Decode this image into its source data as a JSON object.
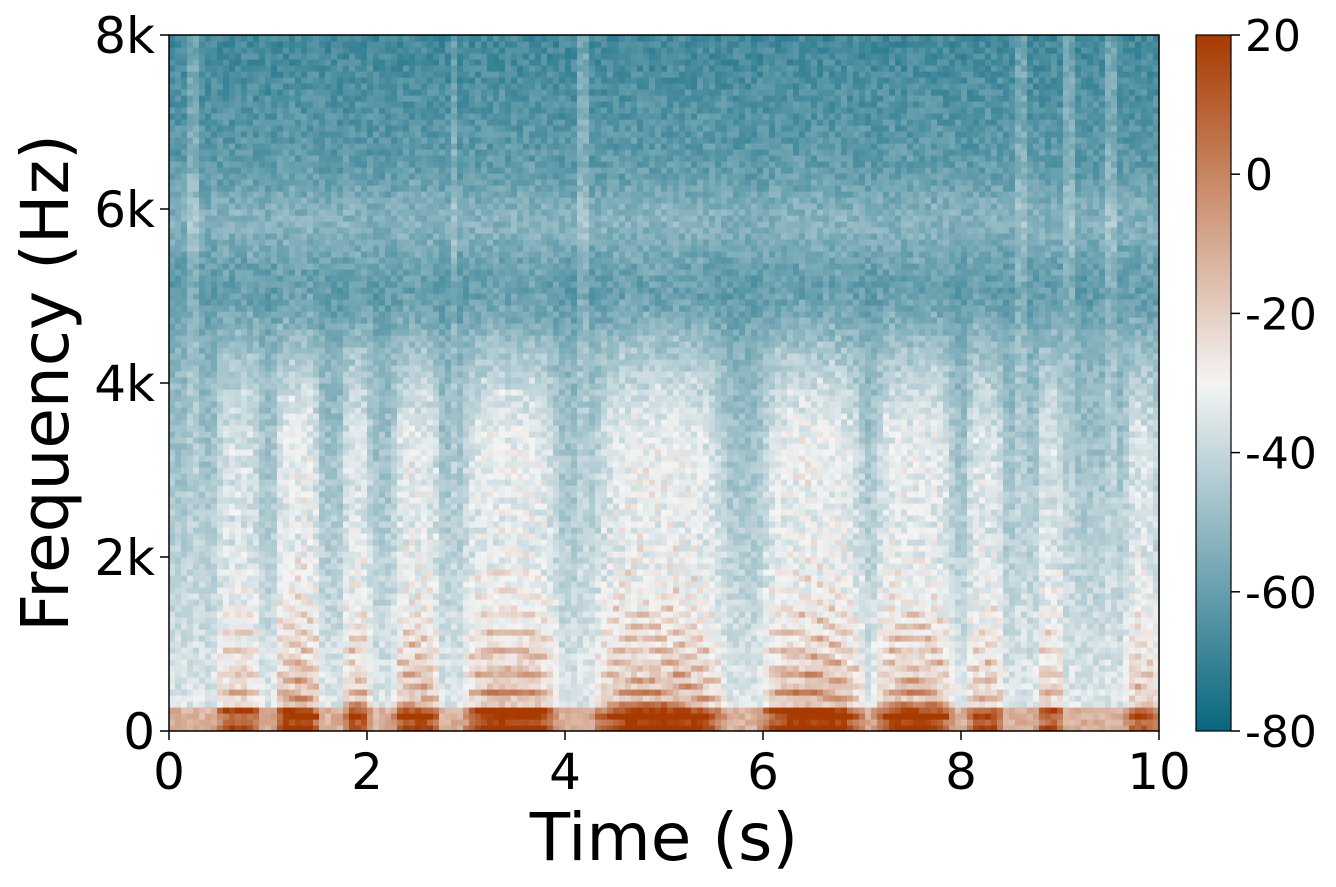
{
  "chart_data": {
    "type": "heatmap",
    "subtype": "spectrogram",
    "xlabel": "Time (s)",
    "ylabel": "Frequency (Hz)",
    "xlim": [
      0,
      10
    ],
    "ylim": [
      0,
      8000
    ],
    "x_ticks": [
      {
        "value": 0,
        "label": "0"
      },
      {
        "value": 2,
        "label": "2"
      },
      {
        "value": 4,
        "label": "4"
      },
      {
        "value": 6,
        "label": "6"
      },
      {
        "value": 8,
        "label": "8"
      },
      {
        "value": 10,
        "label": "10"
      }
    ],
    "y_ticks": [
      {
        "value": 0,
        "label": "0"
      },
      {
        "value": 2000,
        "label": "2k"
      },
      {
        "value": 4000,
        "label": "4k"
      },
      {
        "value": 6000,
        "label": "6k"
      },
      {
        "value": 8000,
        "label": "8k"
      }
    ],
    "colorbar": {
      "range": [
        -80,
        20
      ],
      "ticks": [
        {
          "value": 20,
          "label": "20"
        },
        {
          "value": 0,
          "label": "0"
        },
        {
          "value": -20,
          "label": "-20"
        },
        {
          "value": -40,
          "label": "-40"
        },
        {
          "value": -60,
          "label": "-60"
        },
        {
          "value": -80,
          "label": "-80"
        }
      ],
      "colors": [
        "#08667e",
        "#f4f4f4",
        "#a83a00"
      ]
    },
    "grid": false,
    "voiced_segments": [
      {
        "start": 0.45,
        "end": 0.95,
        "peak": 0.7
      },
      {
        "start": 1.05,
        "end": 1.55,
        "peak": 0.95
      },
      {
        "start": 1.75,
        "end": 2.05,
        "peak": 0.8
      },
      {
        "start": 2.25,
        "end": 2.75,
        "peak": 0.88
      },
      {
        "start": 2.95,
        "end": 3.95,
        "peak": 0.98
      },
      {
        "start": 4.25,
        "end": 5.65,
        "peak": 1.0
      },
      {
        "start": 5.95,
        "end": 7.05,
        "peak": 1.0
      },
      {
        "start": 7.1,
        "end": 7.95,
        "peak": 0.95
      },
      {
        "start": 8.05,
        "end": 8.45,
        "peak": 0.75
      },
      {
        "start": 8.75,
        "end": 9.05,
        "peak": 0.7
      },
      {
        "start": 9.65,
        "end": 10.0,
        "peak": 0.7
      }
    ]
  }
}
